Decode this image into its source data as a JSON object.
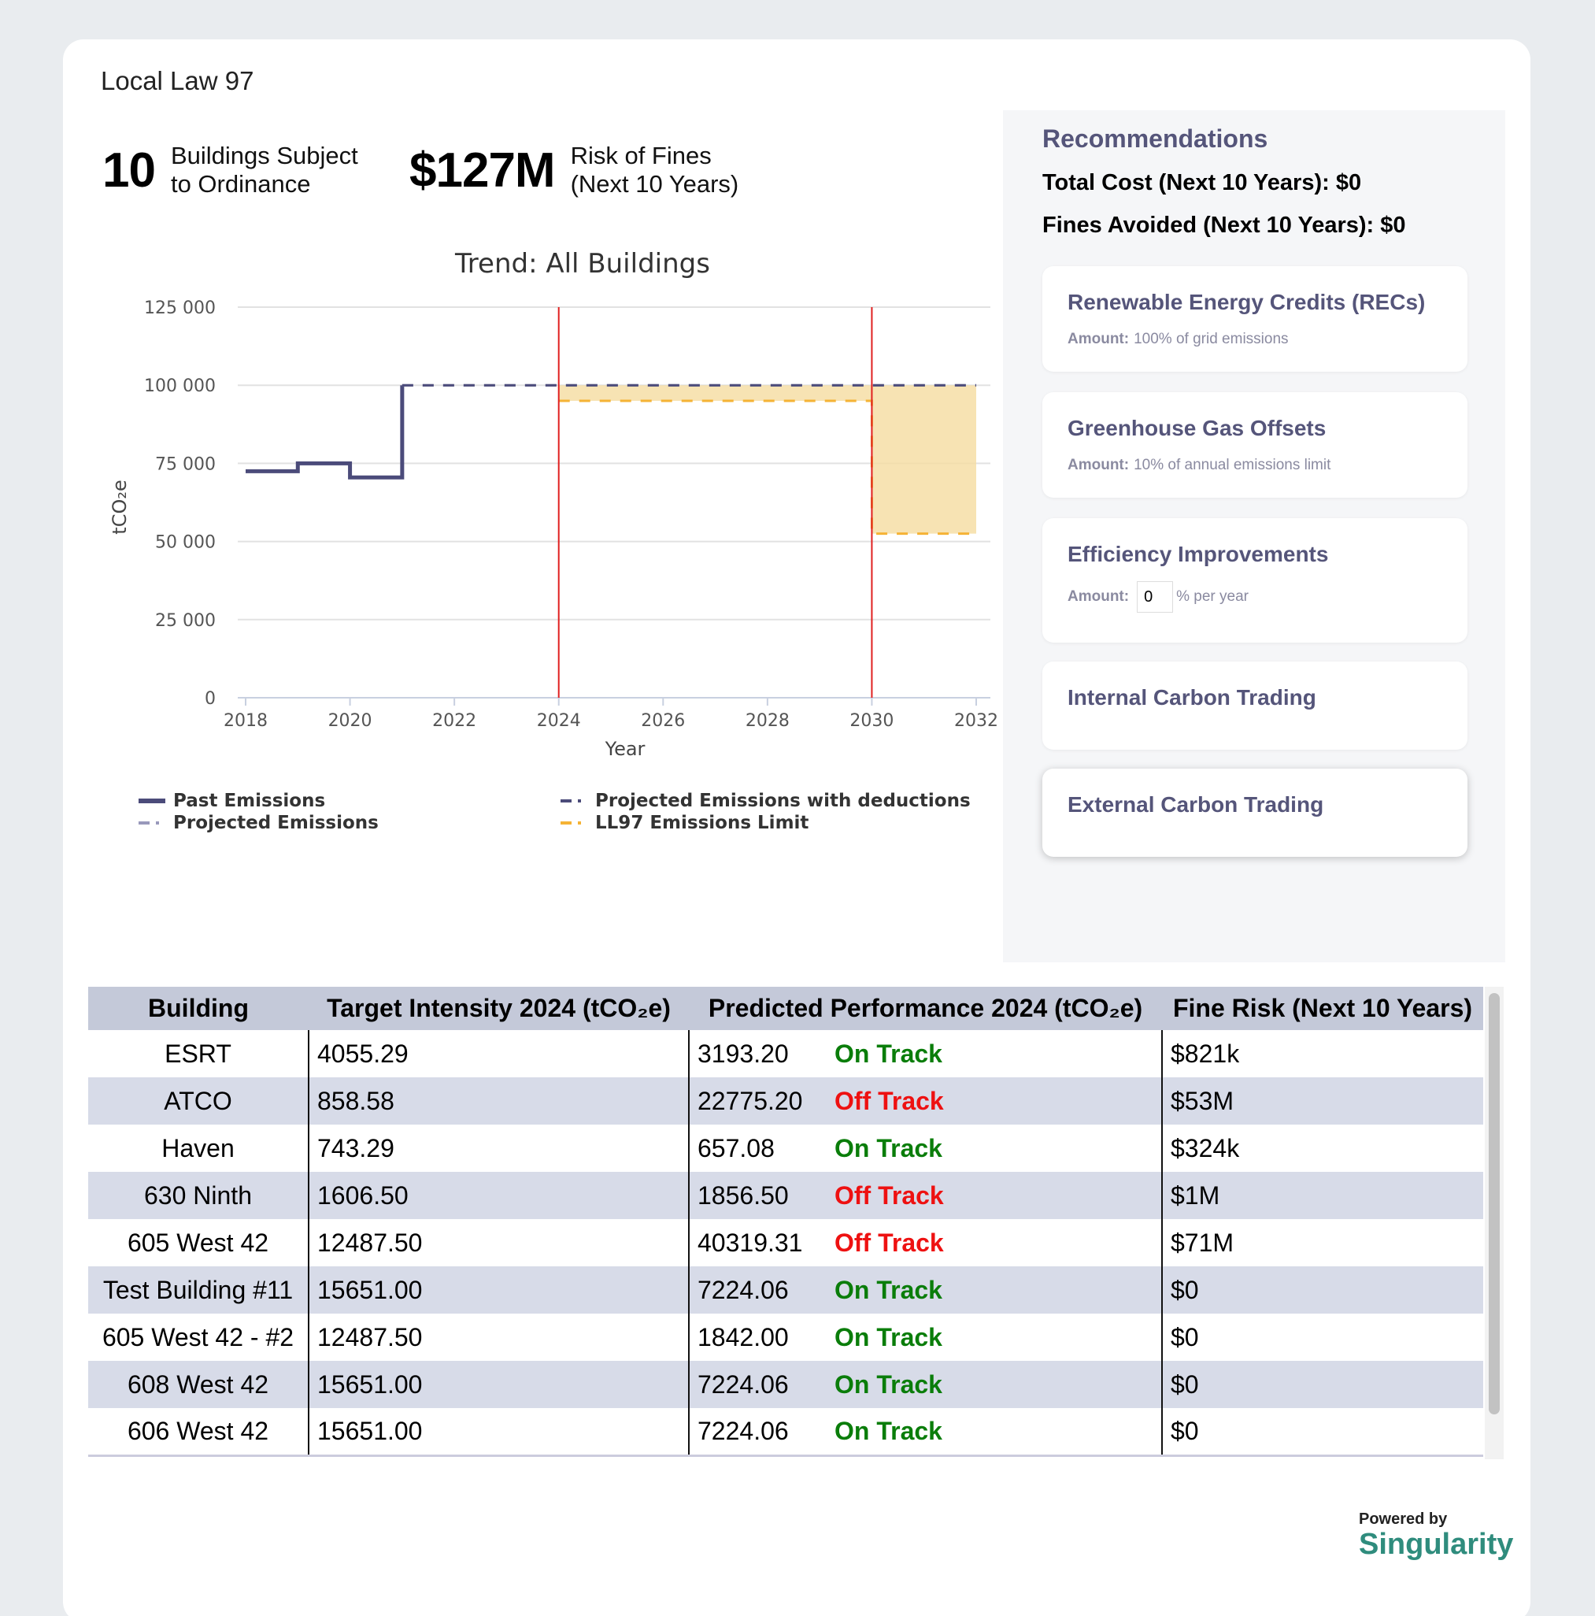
{
  "app": {
    "title": "Local Law 97"
  },
  "kpis": [
    {
      "value": "10",
      "label_line1": "Buildings Subject",
      "label_line2": "to Ordinance"
    },
    {
      "value": "$127M",
      "label_line1": "Risk of Fines",
      "label_line2": "(Next 10 Years)"
    }
  ],
  "chart_data": {
    "type": "line",
    "title": "Trend: All Buildings",
    "xlabel": "Year",
    "ylabel": "tCO₂e",
    "xlim": [
      2018,
      2032
    ],
    "ylim": [
      0,
      125000
    ],
    "x_ticks": [
      2018,
      2020,
      2022,
      2024,
      2026,
      2028,
      2030,
      2032
    ],
    "y_ticks": [
      0,
      25000,
      50000,
      75000,
      100000,
      125000
    ],
    "y_tick_labels": [
      "0",
      "25 000",
      "50 000",
      "75 000",
      "100 000",
      "125 000"
    ],
    "grid": true,
    "legend_position": "bottom",
    "vertical_markers": [
      2024,
      2030
    ],
    "series": [
      {
        "name": "Past Emissions",
        "style": "solid-step",
        "color": "#4b4b7a",
        "points": [
          [
            2018,
            72500
          ],
          [
            2019,
            72500
          ],
          [
            2019,
            75000
          ],
          [
            2020,
            75000
          ],
          [
            2020,
            70500
          ],
          [
            2021,
            70500
          ],
          [
            2021,
            100000
          ]
        ]
      },
      {
        "name": "Projected Emissions",
        "style": "dashed",
        "color": "#9999bb",
        "points": [
          [
            2021,
            100000
          ],
          [
            2032,
            100000
          ]
        ]
      },
      {
        "name": "Projected Emissions with deductions",
        "style": "dashed",
        "color": "#4b4b7a",
        "points": [
          [
            2021,
            100000
          ],
          [
            2032,
            100000
          ]
        ]
      },
      {
        "name": "LL97 Emissions Limit",
        "style": "dashed-step",
        "color": "#f5b335",
        "points": [
          [
            2024,
            95000
          ],
          [
            2030,
            95000
          ],
          [
            2030,
            52500
          ],
          [
            2032,
            52500
          ]
        ]
      }
    ]
  },
  "recommendations": {
    "title": "Recommendations",
    "total_cost": "Total Cost (Next 10 Years): $0",
    "fines_avoided": "Fines Avoided (Next 10 Years): $0",
    "amount_label": "Amount:",
    "cards": [
      {
        "name": "Renewable Energy Credits (RECs)",
        "amount": "100% of grid emissions"
      },
      {
        "name": "Greenhouse Gas Offsets",
        "amount": "10% of annual emissions limit"
      },
      {
        "name": "Efficiency Improvements",
        "input_value": "0",
        "amount_suffix": "% per year"
      },
      {
        "name": "Internal Carbon Trading"
      },
      {
        "name": "External Carbon Trading"
      }
    ]
  },
  "table": {
    "headers": [
      "Building",
      "Target Intensity 2024 (tCO₂e)",
      "Predicted Performance 2024 (tCO₂e)",
      "Fine Risk (Next 10 Years)"
    ],
    "rows": [
      {
        "building": "ESRT",
        "target": "4055.29",
        "predicted": "3193.20",
        "status": "On Track",
        "fine": "$821k"
      },
      {
        "building": "ATCO",
        "target": "858.58",
        "predicted": "22775.20",
        "status": "Off Track",
        "fine": "$53M"
      },
      {
        "building": "Haven",
        "target": "743.29",
        "predicted": "657.08",
        "status": "On Track",
        "fine": "$324k"
      },
      {
        "building": "630 Ninth",
        "target": "1606.50",
        "predicted": "1856.50",
        "status": "Off Track",
        "fine": "$1M"
      },
      {
        "building": "605 West 42",
        "target": "12487.50",
        "predicted": "40319.31",
        "status": "Off Track",
        "fine": "$71M"
      },
      {
        "building": "Test Building #11",
        "target": "15651.00",
        "predicted": "7224.06",
        "status": "On Track",
        "fine": "$0"
      },
      {
        "building": "605 West 42 - #2",
        "target": "12487.50",
        "predicted": "1842.00",
        "status": "On Track",
        "fine": "$0"
      },
      {
        "building": "608 West 42",
        "target": "15651.00",
        "predicted": "7224.06",
        "status": "On Track",
        "fine": "$0"
      },
      {
        "building": "606 West 42",
        "target": "15651.00",
        "predicted": "7224.06",
        "status": "On Track",
        "fine": "$0"
      }
    ]
  },
  "footer": {
    "powered_by": "Powered by",
    "brand": "Singularity"
  },
  "colors": {
    "accent": "#55557a",
    "on_track": "#0a7d0a",
    "off_track": "#ee1111",
    "brand": "#2f8c7d",
    "limit": "#f5b335",
    "fill": "#f5dca0"
  }
}
